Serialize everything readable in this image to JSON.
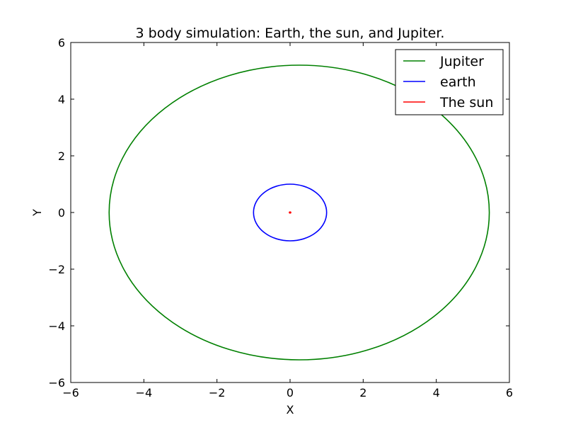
{
  "chart_data": {
    "type": "line",
    "title": "3 body simulation: Earth, the sun, and Jupiter.",
    "xlabel": "X",
    "ylabel": "Y",
    "xlim": [
      -6,
      6
    ],
    "ylim": [
      -6,
      6
    ],
    "xticks": [
      -6,
      -4,
      -2,
      0,
      2,
      4,
      6
    ],
    "yticks": [
      -6,
      -4,
      -2,
      0,
      2,
      4,
      6
    ],
    "xtick_labels": [
      "−6",
      "−4",
      "−2",
      "0",
      "2",
      "4",
      "6"
    ],
    "ytick_labels": [
      "−6",
      "−4",
      "−2",
      "0",
      "2",
      "4",
      "6"
    ],
    "grid": false,
    "legend_position": "top-right",
    "series": [
      {
        "name": "Jupiter",
        "color": "#008000",
        "shape": "ellipse",
        "center": [
          0.25,
          0.0
        ],
        "radius_x": 5.2,
        "radius_y": 5.2
      },
      {
        "name": "earth",
        "color": "#0000ff",
        "shape": "ellipse",
        "center": [
          0.0,
          0.0
        ],
        "radius_x": 1.0,
        "radius_y": 1.0
      },
      {
        "name": "The sun",
        "color": "#ff0000",
        "shape": "ellipse",
        "center": [
          0.0,
          0.0
        ],
        "radius_x": 0.02,
        "radius_y": 0.02
      }
    ]
  }
}
